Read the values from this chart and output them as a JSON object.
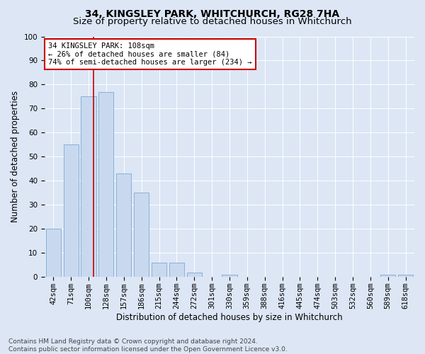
{
  "title": "34, KINGSLEY PARK, WHITCHURCH, RG28 7HA",
  "subtitle": "Size of property relative to detached houses in Whitchurch",
  "xlabel": "Distribution of detached houses by size in Whitchurch",
  "ylabel": "Number of detached properties",
  "bar_labels": [
    "42sqm",
    "71sqm",
    "100sqm",
    "128sqm",
    "157sqm",
    "186sqm",
    "215sqm",
    "244sqm",
    "272sqm",
    "301sqm",
    "330sqm",
    "359sqm",
    "388sqm",
    "416sqm",
    "445sqm",
    "474sqm",
    "503sqm",
    "532sqm",
    "560sqm",
    "589sqm",
    "618sqm"
  ],
  "bar_values": [
    20,
    55,
    75,
    77,
    43,
    35,
    6,
    6,
    2,
    0,
    1,
    0,
    0,
    0,
    0,
    0,
    0,
    0,
    0,
    1,
    1
  ],
  "bar_color": "#c8d9ef",
  "bar_edge_color": "#8ab0d5",
  "vline_x": 2.28,
  "vline_color": "#cc0000",
  "annotation_text": "34 KINGSLEY PARK: 108sqm\n← 26% of detached houses are smaller (84)\n74% of semi-detached houses are larger (234) →",
  "annotation_box_color": "#ffffff",
  "annotation_box_edge": "#cc0000",
  "ylim": [
    0,
    100
  ],
  "yticks": [
    0,
    10,
    20,
    30,
    40,
    50,
    60,
    70,
    80,
    90,
    100
  ],
  "background_color": "#dce6f5",
  "plot_bg_color": "#dce6f5",
  "footnote": "Contains HM Land Registry data © Crown copyright and database right 2024.\nContains public sector information licensed under the Open Government Licence v3.0.",
  "title_fontsize": 10,
  "subtitle_fontsize": 9.5,
  "xlabel_fontsize": 8.5,
  "ylabel_fontsize": 8.5,
  "tick_fontsize": 7.5,
  "annotation_fontsize": 7.5,
  "footnote_fontsize": 6.5
}
